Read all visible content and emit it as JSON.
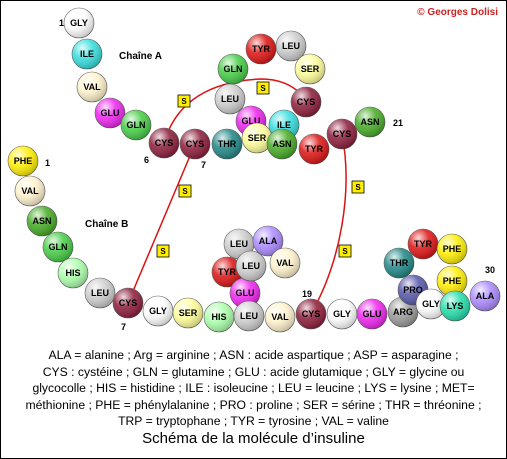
{
  "copyright": "© Georges Dolisi",
  "chains": {
    "a_label": "Chaîne A",
    "b_label": "Chaîne B"
  },
  "numbers": {
    "a_start": "1",
    "a_end": "21",
    "a_cys6": "6",
    "a_cys7": "7",
    "b_start": "1",
    "b_cys7": "7",
    "b_cys19": "19",
    "b_end": "30"
  },
  "disulfide_label": "S",
  "residues": [
    {
      "id": "a1",
      "label": "GLY",
      "color": "#ffffff"
    },
    {
      "id": "a2",
      "label": "ILE",
      "color": "#33dddd"
    },
    {
      "id": "a3",
      "label": "VAL",
      "color": "#fff2cc"
    },
    {
      "id": "a4",
      "label": "GLU",
      "color": "#ee22ee"
    },
    {
      "id": "a5",
      "label": "GLN",
      "color": "#44cc44"
    },
    {
      "id": "a6",
      "label": "CYS",
      "color": "#8b1a38"
    },
    {
      "id": "a7",
      "label": "CYS",
      "color": "#8b1a38"
    },
    {
      "id": "a8",
      "label": "THR",
      "color": "#1e8585"
    },
    {
      "id": "a9",
      "label": "SER",
      "color": "#ffff99"
    },
    {
      "id": "a10",
      "label": "ILE",
      "color": "#33dddd"
    },
    {
      "id": "a11",
      "label": "CYS",
      "color": "#8b1a38"
    },
    {
      "id": "a12",
      "label": "SER",
      "color": "#ffff99"
    },
    {
      "id": "a13",
      "label": "LEU",
      "color": "#cccccc"
    },
    {
      "id": "a14",
      "label": "TYR",
      "color": "#dd1111"
    },
    {
      "id": "a15",
      "label": "GLN",
      "color": "#44cc44"
    },
    {
      "id": "a16",
      "label": "LEU",
      "color": "#cccccc"
    },
    {
      "id": "a17",
      "label": "GLU",
      "color": "#ee22ee"
    },
    {
      "id": "a18",
      "label": "ASN",
      "color": "#44aa22"
    },
    {
      "id": "a19",
      "label": "TYR",
      "color": "#dd1111"
    },
    {
      "id": "a20",
      "label": "CYS",
      "color": "#8b1a38"
    },
    {
      "id": "a21",
      "label": "ASN",
      "color": "#44aa22"
    },
    {
      "id": "b1",
      "label": "PHE",
      "color": "#ffee00"
    },
    {
      "id": "b2",
      "label": "VAL",
      "color": "#fff2cc"
    },
    {
      "id": "b3",
      "label": "ASN",
      "color": "#44aa22"
    },
    {
      "id": "b4",
      "label": "GLN",
      "color": "#44cc44"
    },
    {
      "id": "b5",
      "label": "HIS",
      "color": "#aaffaa"
    },
    {
      "id": "b6",
      "label": "LEU",
      "color": "#cccccc"
    },
    {
      "id": "b7",
      "label": "CYS",
      "color": "#8b1a38"
    },
    {
      "id": "b8",
      "label": "GLY",
      "color": "#ffffff"
    },
    {
      "id": "b9",
      "label": "SER",
      "color": "#ffff99"
    },
    {
      "id": "b10",
      "label": "HIS",
      "color": "#aaffaa"
    },
    {
      "id": "b11",
      "label": "LEU",
      "color": "#cccccc"
    },
    {
      "id": "b12",
      "label": "VAL",
      "color": "#fff2cc"
    },
    {
      "id": "b13",
      "label": "GLU",
      "color": "#ee22ee"
    },
    {
      "id": "b14",
      "label": "ALA",
      "color": "#aa88ff"
    },
    {
      "id": "b15",
      "label": "LEU",
      "color": "#cccccc"
    },
    {
      "id": "b16",
      "label": "TYR",
      "color": "#dd1111"
    },
    {
      "id": "b17",
      "label": "LEU",
      "color": "#cccccc"
    },
    {
      "id": "b18",
      "label": "VAL",
      "color": "#fff2cc"
    },
    {
      "id": "b19",
      "label": "CYS",
      "color": "#8b1a38"
    },
    {
      "id": "b20",
      "label": "GLY",
      "color": "#ffffff"
    },
    {
      "id": "b21",
      "label": "GLU",
      "color": "#ee22ee"
    },
    {
      "id": "b22",
      "label": "ARG",
      "color": "#999999"
    },
    {
      "id": "b23",
      "label": "GLY",
      "color": "#ffffff"
    },
    {
      "id": "b24",
      "label": "PHE",
      "color": "#ffee00"
    },
    {
      "id": "b25",
      "label": "PHE",
      "color": "#ffee00"
    },
    {
      "id": "b26",
      "label": "TYR",
      "color": "#dd1111"
    },
    {
      "id": "b27",
      "label": "THR",
      "color": "#1e8585"
    },
    {
      "id": "b28",
      "label": "PRO",
      "color": "#5555aa"
    },
    {
      "id": "b29",
      "label": "LYS",
      "color": "#22ddaa"
    },
    {
      "id": "b30",
      "label": "ALA",
      "color": "#aa88ff"
    }
  ],
  "legend": [
    "ALA = alanine ; Arg = arginine ; ASN : acide aspartique ; ASP = asparagine ;",
    "CYS : cystéine ; GLN = glutamine ; GLU : acide glutamique ; GLY = glycine ou",
    "glycocolle ; HIS = histidine ; ILE : isoleucine ; LEU = leucine ; LYS = lysine ; MET=",
    "méthionine ; PHE = phénylalanine ; PRO : proline ; SER = sérine ; THR = thréonine ;",
    "TRP = tryptophane ; TYR = tyrosine ; VAL = valine"
  ],
  "caption": "Schéma de la molécule d’insuline"
}
